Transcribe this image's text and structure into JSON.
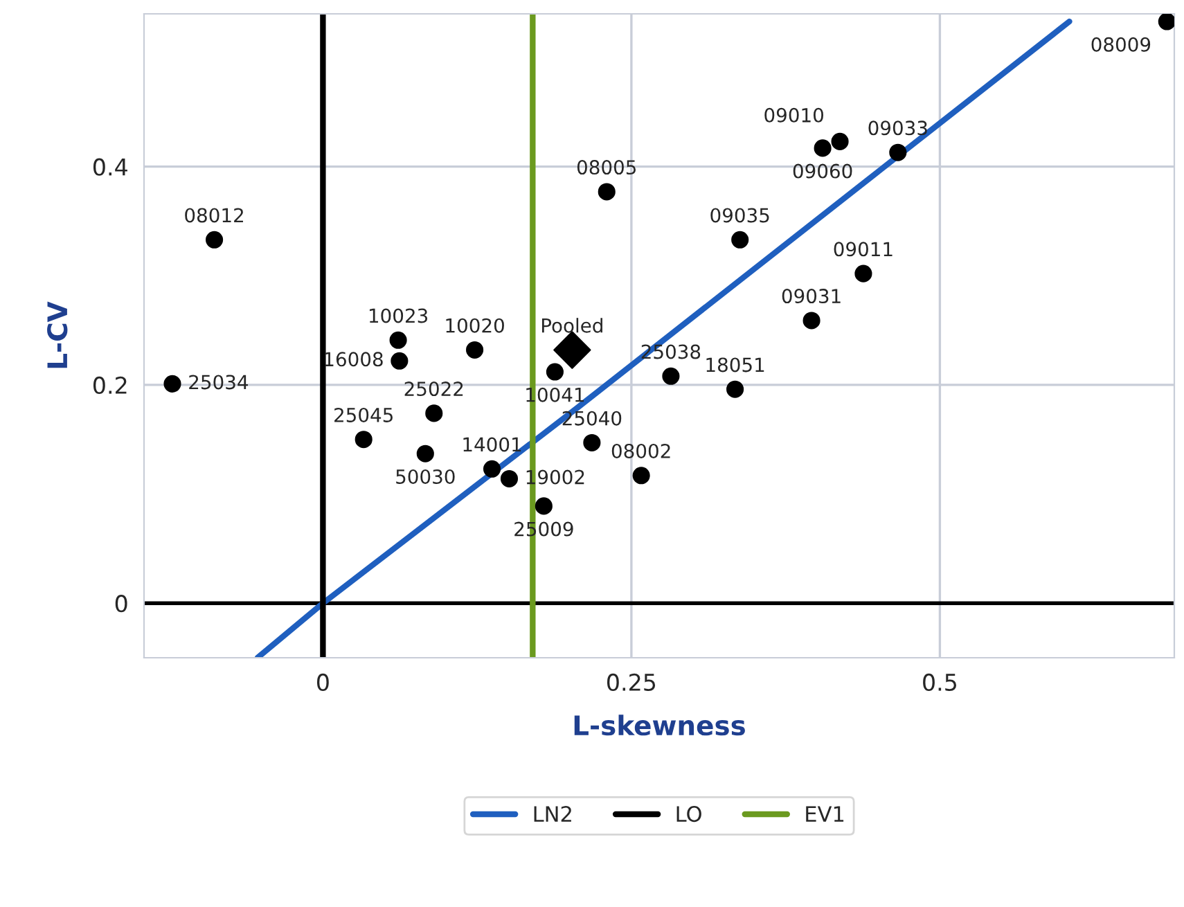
{
  "chart_data": {
    "type": "scatter",
    "xlabel": "L-skewness",
    "ylabel": "L-CV",
    "xlim": [
      -0.145,
      0.69
    ],
    "ylim": [
      -0.05,
      0.54
    ],
    "xticks": [
      0,
      0.25,
      0.5
    ],
    "yticks": [
      0,
      0.2,
      0.4
    ],
    "grid": true,
    "legend": "bottom",
    "ref_lines": [
      {
        "axis": "y",
        "value": 0,
        "color": "#000000"
      }
    ],
    "series": [
      {
        "name": "LN2",
        "type": "line",
        "color": "#1f5fbf",
        "x": [
          -0.053,
          0,
          0.205,
          0.605
        ],
        "values": [
          -0.05,
          0,
          0.178,
          0.533
        ]
      },
      {
        "name": "LO",
        "type": "line",
        "color": "#000000",
        "x": [
          0,
          0
        ],
        "values": [
          -0.05,
          0.54
        ]
      },
      {
        "name": "EV1",
        "type": "line",
        "color": "#6b9a1f",
        "x": [
          0.17,
          0.17
        ],
        "values": [
          -0.05,
          0.54
        ]
      },
      {
        "color": "#000000",
        "marker": "circle",
        "x": [
          0.684,
          0.466,
          0.419,
          0.405,
          0.438,
          0.396,
          0.338,
          0.334,
          0.282,
          0.23,
          0.188,
          0.258,
          0.218,
          0.179,
          0.151,
          0.137,
          0.083,
          0.033,
          0.09,
          -0.122,
          -0.088,
          0.062,
          0.061,
          0.123
        ],
        "values": [
          0.533,
          0.413,
          0.423,
          0.417,
          0.302,
          0.259,
          0.333,
          0.196,
          0.208,
          0.377,
          0.212,
          0.117,
          0.147,
          0.089,
          0.114,
          0.123,
          0.137,
          0.15,
          0.174,
          0.201,
          0.333,
          0.222,
          0.241,
          0.232
        ]
      },
      {
        "color": "#000000",
        "marker": "diamond",
        "x": [
          0.202
        ],
        "values": [
          0.232
        ]
      }
    ],
    "annotations": [
      {
        "text": "08009",
        "x": 0.684,
        "y": 0.533
      },
      {
        "text": "09033",
        "x": 0.466,
        "y": 0.413
      },
      {
        "text": "09010",
        "x": 0.419,
        "y": 0.423
      },
      {
        "text": "09060",
        "x": 0.405,
        "y": 0.417
      },
      {
        "text": "09011",
        "x": 0.438,
        "y": 0.302
      },
      {
        "text": "09031",
        "x": 0.396,
        "y": 0.259
      },
      {
        "text": "09035",
        "x": 0.338,
        "y": 0.333
      },
      {
        "text": "18051",
        "x": 0.334,
        "y": 0.196
      },
      {
        "text": "25038",
        "x": 0.282,
        "y": 0.208
      },
      {
        "text": "08005",
        "x": 0.23,
        "y": 0.377
      },
      {
        "text": "Pooled",
        "x": 0.202,
        "y": 0.232
      },
      {
        "text": "10041",
        "x": 0.188,
        "y": 0.212
      },
      {
        "text": "08002",
        "x": 0.258,
        "y": 0.117
      },
      {
        "text": "25040",
        "x": 0.218,
        "y": 0.147
      },
      {
        "text": "25009",
        "x": 0.179,
        "y": 0.089
      },
      {
        "text": "19002",
        "x": 0.151,
        "y": 0.114
      },
      {
        "text": "14001",
        "x": 0.137,
        "y": 0.123
      },
      {
        "text": "50030",
        "x": 0.083,
        "y": 0.137
      },
      {
        "text": "25045",
        "x": 0.033,
        "y": 0.15
      },
      {
        "text": "25022",
        "x": 0.09,
        "y": 0.174
      },
      {
        "text": "25034",
        "x": -0.122,
        "y": 0.201
      },
      {
        "text": "08012",
        "x": -0.088,
        "y": 0.333
      },
      {
        "text": "16008",
        "x": 0.062,
        "y": 0.222
      },
      {
        "text": "10023",
        "x": 0.061,
        "y": 0.241
      },
      {
        "text": "10020",
        "x": 0.123,
        "y": 0.232
      }
    ]
  }
}
